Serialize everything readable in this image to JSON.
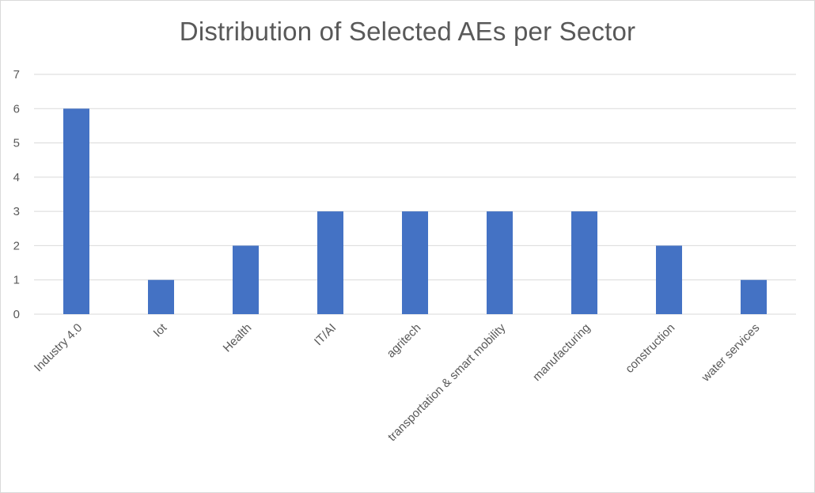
{
  "chart_data": {
    "type": "bar",
    "title": "Distribution of Selected AEs per Sector",
    "categories": [
      "Industry 4.0",
      "Iot",
      "Health",
      "IT/AI",
      "agritech",
      "transportation & smart mobility",
      "manufacturing",
      "construction",
      "water services"
    ],
    "values": [
      6,
      1,
      2,
      3,
      3,
      3,
      3,
      2,
      1
    ],
    "xlabel": "",
    "ylabel": "",
    "ylim": [
      0,
      7
    ],
    "yticks": [
      "0",
      "1",
      "2",
      "3",
      "4",
      "5",
      "6",
      "7"
    ],
    "grid": "horizontal",
    "legend": "none",
    "bar_color": "#4472c4"
  }
}
